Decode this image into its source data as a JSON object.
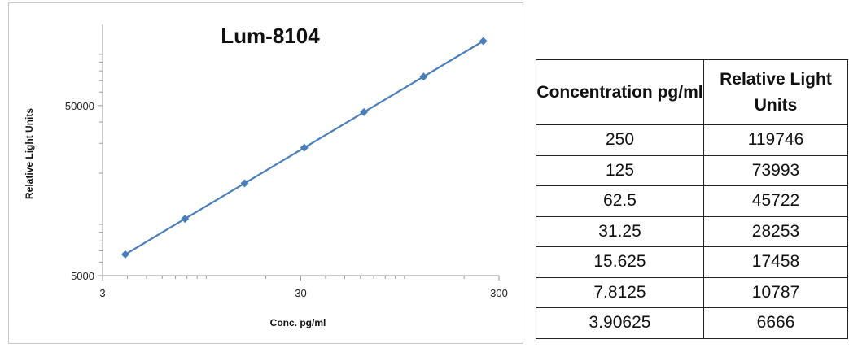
{
  "chart_data": {
    "type": "line",
    "title": "Lum-8104",
    "xlabel": "Conc. pg/ml",
    "ylabel": "Relative Light Units",
    "x_scale": "log",
    "y_scale": "log",
    "xlim": [
      3,
      300
    ],
    "ylim": [
      5000,
      150000
    ],
    "x_ticks": [
      "3",
      "30",
      "300"
    ],
    "y_ticks": [
      "5000",
      "50000"
    ],
    "series": [
      {
        "x": [
          3.90625,
          7.8125,
          15.625,
          31.25,
          62.5,
          125,
          250
        ],
        "values": [
          6666,
          10787,
          17458,
          28253,
          45722,
          73993,
          119746
        ],
        "color": "#4a7ebb",
        "marker": "diamond"
      }
    ],
    "grid": false,
    "legend": "none"
  },
  "table": {
    "headers": [
      "Concentration pg/ml",
      "Relative Light Units"
    ],
    "rows": [
      [
        "250",
        "119746"
      ],
      [
        "125",
        "73993"
      ],
      [
        "62.5",
        "45722"
      ],
      [
        "31.25",
        "28253"
      ],
      [
        "15.625",
        "17458"
      ],
      [
        "7.8125",
        "10787"
      ],
      [
        "3.90625",
        "6666"
      ]
    ]
  }
}
